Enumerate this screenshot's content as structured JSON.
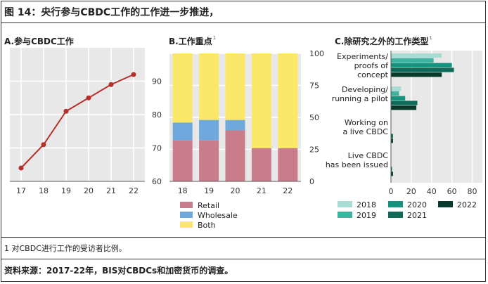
{
  "figure": {
    "title": "图 14：央行参与CBDC工作的工作进一步推进，",
    "note": "1 对CBDC进行工作的受访者比例。",
    "source": "资料来源：2017-22年，BIS对CBDCs和加密货币的调查。"
  },
  "colors": {
    "line": "#b5302a",
    "retail": "#c97d8a",
    "wholesale": "#6ea8dc",
    "both": "#fce868",
    "y2018": "#a8dcd4",
    "y2019": "#3fb39f",
    "y2020": "#14947f",
    "y2021": "#0f6b58",
    "y2022": "#0a3a2c",
    "panel_bg": "#e8e8e8",
    "grid": "#ffffff"
  },
  "chart_data": [
    {
      "type": "line",
      "title": "A.参与CBDC工作",
      "x": [
        "17",
        "18",
        "19",
        "20",
        "21",
        "22"
      ],
      "values": [
        64,
        71,
        81,
        85,
        89,
        92
      ],
      "ylim": [
        60,
        100
      ],
      "yticks": [
        60,
        70,
        80,
        90
      ],
      "grid": true
    },
    {
      "type": "bar",
      "stacked": true,
      "title": "B.工作重点",
      "title_sup": "1",
      "categories": [
        "18",
        "19",
        "20",
        "21",
        "22"
      ],
      "series": [
        {
          "name": "Retail",
          "values": [
            32,
            32,
            40,
            26,
            26
          ]
        },
        {
          "name": "Wholesale",
          "values": [
            14,
            16,
            8,
            0,
            0
          ]
        },
        {
          "name": "Both",
          "values": [
            54,
            52,
            52,
            74,
            74
          ]
        }
      ],
      "ylim": [
        0,
        100
      ],
      "yticks": [
        0,
        25,
        50,
        75,
        100
      ]
    },
    {
      "type": "bar",
      "orientation": "horizontal",
      "title": "C.除研究之外的工作类型",
      "title_sup": "1",
      "categories": [
        [
          "Experiments/",
          "proofs of",
          "concept"
        ],
        [
          "Developing/",
          "running a pilot"
        ],
        [
          "Working on",
          "a live CBDC"
        ],
        [
          "Live CBDC",
          "has been issued"
        ]
      ],
      "series": [
        {
          "name": "2018",
          "values": [
            50,
            10,
            0,
            0
          ]
        },
        {
          "name": "2019",
          "values": [
            42,
            8,
            0,
            0
          ]
        },
        {
          "name": "2020",
          "values": [
            60,
            14,
            0,
            0
          ]
        },
        {
          "name": "2021",
          "values": [
            62,
            26,
            2,
            1
          ]
        },
        {
          "name": "2022",
          "values": [
            50,
            25,
            2,
            2
          ]
        }
      ],
      "xlim": [
        0,
        90
      ],
      "xticks": [
        0,
        20,
        40,
        60,
        80
      ]
    }
  ]
}
